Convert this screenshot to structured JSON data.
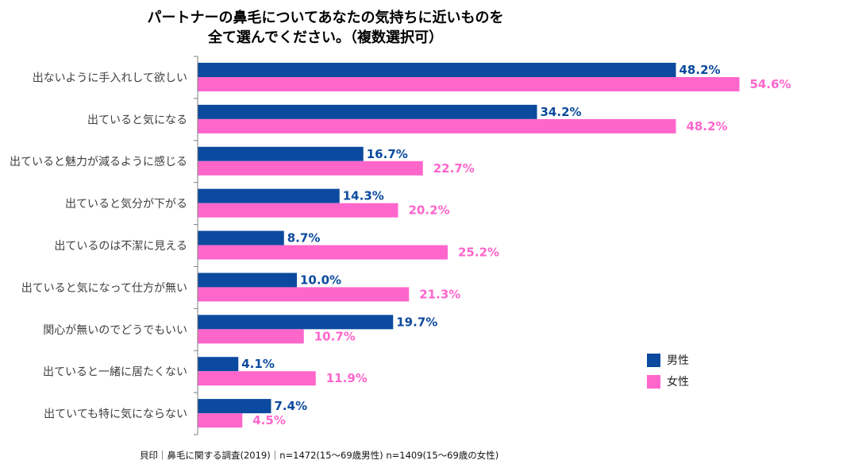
{
  "title_line1": "パートナーの鼻毛についてあなたの気持ちに近いものを",
  "title_line2": "全て選んでください。（複数選択可）",
  "source": "貝印｜鼻毛に関する調査(2019)｜n=1472(15～69歳男性)  n=1409(15～69歳の女性)",
  "colors": {
    "male": "#0B4A9E",
    "female": "#FF66CC",
    "axis": "#7F7F7F"
  },
  "chart_data": {
    "type": "bar",
    "orientation": "horizontal",
    "categories": [
      "出ないように手入れして欲しい",
      "出ていると気になる",
      "出ていると魅力が減るように感じる",
      "出ていると気分が下がる",
      "出ているのは不潔に見える",
      "出ていると気になって仕方が無い",
      "関心が無いのでどうでもいい",
      "出ていると一緒に居たくない",
      "出ていても特に気にならない"
    ],
    "series": [
      {
        "name": "男性",
        "values": [
          48.2,
          34.2,
          16.7,
          14.3,
          8.7,
          10.0,
          19.7,
          4.1,
          7.4
        ],
        "labels": [
          "48.2%",
          "34.2%",
          "16.7%",
          "14.3%",
          "8.7%",
          "10.0%",
          "19.7%",
          "4.1%",
          "7.4%"
        ]
      },
      {
        "name": "女性",
        "values": [
          54.6,
          48.2,
          22.7,
          20.2,
          25.2,
          21.3,
          10.7,
          11.9,
          4.5
        ],
        "labels": [
          "54.6%",
          "48.2%",
          "22.7%",
          "20.2%",
          "25.2%",
          "21.3%",
          "10.7%",
          "11.9%",
          "4.5%"
        ]
      }
    ],
    "xlim": [
      0,
      60
    ],
    "grid": false,
    "legend_position": "bottom-right"
  }
}
